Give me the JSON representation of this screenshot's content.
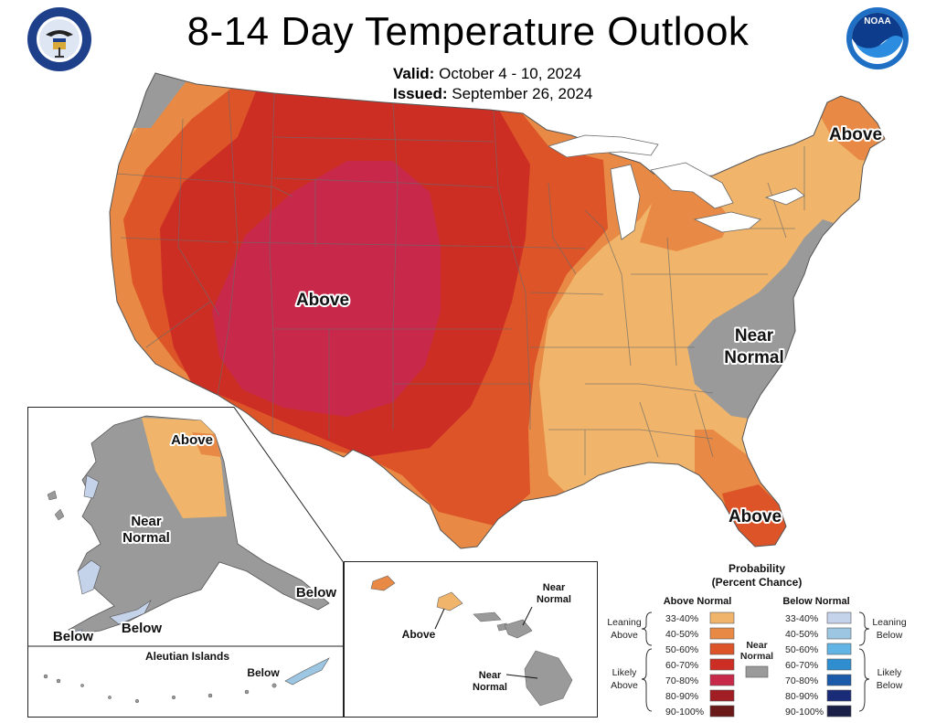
{
  "header": {
    "title": "8-14 Day Temperature Outlook",
    "valid_label": "Valid:",
    "valid_value": "October 4 - 10, 2024",
    "issued_label": "Issued:",
    "issued_value": "September 26, 2024",
    "left_logo": "department-of-commerce-seal-icon",
    "right_logo": "noaa-logo-icon",
    "noaa_text": "NOAA"
  },
  "map_labels": {
    "conus_above_west": "Above",
    "conus_above_ne": "Above",
    "conus_near_normal_line1": "Near",
    "conus_near_normal_line2": "Normal",
    "conus_above_fl": "Above",
    "ak_above": "Above",
    "ak_near_line1": "Near",
    "ak_near_line2": "Normal",
    "ak_below_se": "Below",
    "ak_below_sw1": "Below",
    "ak_below_sw2": "Below",
    "aleutian_title": "Aleutian Islands",
    "aleutian_below": "Below",
    "hi_above": "Above",
    "hi_near1_line1": "Near",
    "hi_near1_line2": "Normal",
    "hi_near2_line1": "Near",
    "hi_near2_line2": "Normal"
  },
  "legend": {
    "title_line1": "Probability",
    "title_line2": "(Percent Chance)",
    "above_header": "Above Normal",
    "below_header": "Below Normal",
    "near_line1": "Near",
    "near_line2": "Normal",
    "leaning_above_1": "Leaning",
    "leaning_above_2": "Above",
    "likely_above_1": "Likely",
    "likely_above_2": "Above",
    "leaning_below_1": "Leaning",
    "leaning_below_2": "Below",
    "likely_below_1": "Likely",
    "likely_below_2": "Below",
    "above_bins": [
      {
        "range": "33-40%",
        "color": "#f0b46a"
      },
      {
        "range": "40-50%",
        "color": "#e88a45"
      },
      {
        "range": "50-60%",
        "color": "#dc5428"
      },
      {
        "range": "60-70%",
        "color": "#cc2e24"
      },
      {
        "range": "70-80%",
        "color": "#c8284a"
      },
      {
        "range": "80-90%",
        "color": "#a01e24"
      },
      {
        "range": "90-100%",
        "color": "#6a1818"
      }
    ],
    "below_bins": [
      {
        "range": "33-40%",
        "color": "#c4d2ea"
      },
      {
        "range": "40-50%",
        "color": "#9cc6e2"
      },
      {
        "range": "50-60%",
        "color": "#62b4e4"
      },
      {
        "range": "60-70%",
        "color": "#2e8ed0"
      },
      {
        "range": "70-80%",
        "color": "#1a5aa8"
      },
      {
        "range": "80-90%",
        "color": "#1a2c78"
      },
      {
        "range": "90-100%",
        "color": "#1a1f48"
      }
    ],
    "near_color": "#9a9a9a"
  }
}
